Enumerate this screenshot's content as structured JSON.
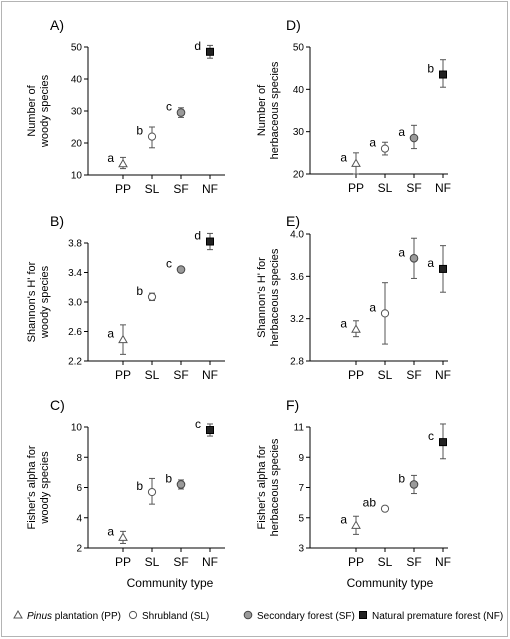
{
  "chart_data": [
    {
      "type": "scatter",
      "panel_label": "A)",
      "ylabel": [
        "Number of",
        "woody species"
      ],
      "categories": [
        "PP",
        "SL",
        "SF",
        "NF"
      ],
      "ylim": [
        10,
        50
      ],
      "yticks": [
        "10",
        "20",
        "30",
        "40",
        "50"
      ],
      "values": [
        13.5,
        22,
        29.5,
        48.5
      ],
      "err_low": [
        12,
        18.5,
        28,
        46.5
      ],
      "err_high": [
        15.5,
        25,
        31,
        50.5
      ],
      "sig": [
        "a",
        "b",
        "c",
        "d"
      ]
    },
    {
      "type": "scatter",
      "panel_label": "D)",
      "ylabel": [
        "Number of",
        "herbaceous species"
      ],
      "categories": [
        "PP",
        "SL",
        "SF",
        "NF"
      ],
      "ylim": [
        20,
        50
      ],
      "yticks": [
        "20",
        "30",
        "40",
        "50"
      ],
      "values": [
        22.5,
        26,
        28.5,
        43.5
      ],
      "err_low": [
        20,
        24.5,
        26,
        40.5
      ],
      "err_high": [
        25,
        27.5,
        31.5,
        47
      ],
      "sig": [
        "a",
        "a",
        "a",
        "b"
      ]
    },
    {
      "type": "scatter",
      "panel_label": "B)",
      "ylabel": [
        "Shannon's H' for",
        "woody species"
      ],
      "categories": [
        "PP",
        "SL",
        "SF",
        "NF"
      ],
      "ylim": [
        2.2,
        3.8
      ],
      "yticks": [
        "2.2",
        "2.6",
        "3.0",
        "3.4",
        "3.8"
      ],
      "values": [
        2.49,
        3.07,
        3.44,
        3.82
      ],
      "err_low": [
        2.29,
        3.02,
        3.42,
        3.71
      ],
      "err_high": [
        2.69,
        3.12,
        3.46,
        3.93
      ],
      "sig": [
        "a",
        "b",
        "c",
        "d"
      ]
    },
    {
      "type": "scatter",
      "panel_label": "E)",
      "ylabel": [
        "Shannon's H' for",
        "herbaceous  species"
      ],
      "categories": [
        "PP",
        "SL",
        "SF",
        "NF"
      ],
      "ylim": [
        2.8,
        4.0
      ],
      "yticks": [
        "2.8",
        "3.2",
        "3.6",
        "4.0"
      ],
      "values": [
        3.1,
        3.25,
        3.77,
        3.67
      ],
      "err_low": [
        3.03,
        2.96,
        3.58,
        3.45
      ],
      "err_high": [
        3.18,
        3.54,
        3.96,
        3.89
      ],
      "sig": [
        "a",
        "a",
        "a",
        "a"
      ]
    },
    {
      "type": "scatter",
      "panel_label": "C)",
      "ylabel": [
        "Fisher's alpha for",
        "woody species"
      ],
      "categories": [
        "PP",
        "SL",
        "SF",
        "NF"
      ],
      "ylim": [
        2,
        10
      ],
      "yticks": [
        "2",
        "4",
        "6",
        "8",
        "10"
      ],
      "values": [
        2.7,
        5.7,
        6.2,
        9.8
      ],
      "err_low": [
        2.3,
        4.9,
        5.9,
        9.4
      ],
      "err_high": [
        3.1,
        6.6,
        6.5,
        10.2
      ],
      "sig": [
        "a",
        "b",
        "b",
        "c"
      ]
    },
    {
      "type": "scatter",
      "panel_label": "F)",
      "ylabel": [
        "Fisher's alpha for",
        "herbaceous species"
      ],
      "categories": [
        "PP",
        "SL",
        "SF",
        "NF"
      ],
      "ylim": [
        3,
        11
      ],
      "yticks": [
        "3",
        "5",
        "7",
        "9",
        "11"
      ],
      "values": [
        4.5,
        5.6,
        7.2,
        10
      ],
      "err_low": [
        3.9,
        5.5,
        6.6,
        8.9
      ],
      "err_high": [
        5.1,
        5.7,
        7.8,
        11.2
      ],
      "sig": [
        "a",
        "ab",
        "b",
        "c"
      ]
    }
  ],
  "xlabel": "Community type",
  "legend": [
    {
      "marker": "triangle",
      "italic": "Pinus",
      "label": " plantation (PP)"
    },
    {
      "marker": "circle-open",
      "italic": "",
      "label": "Shrubland (SL)"
    },
    {
      "marker": "circle-grey",
      "italic": "",
      "label": "Secondary forest (SF)"
    },
    {
      "marker": "square-black",
      "italic": "",
      "label": "Natural premature forest (NF)"
    }
  ],
  "colors": {
    "secondary_forest": "#9a9a9a",
    "natural_forest": "#222222",
    "error_bar": "#555555",
    "frame": "#b4b4b4"
  }
}
